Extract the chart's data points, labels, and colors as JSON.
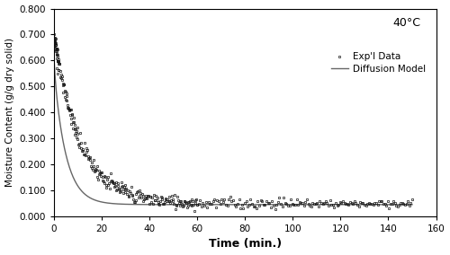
{
  "title": "",
  "xlabel": "Time (min.)",
  "ylabel": "Moisture Content (g/g dry solid)",
  "temp_label": "40°C",
  "xlim": [
    0,
    160
  ],
  "ylim": [
    0.0,
    0.8
  ],
  "xticks": [
    0,
    20,
    40,
    60,
    80,
    100,
    120,
    140,
    160
  ],
  "yticks": [
    0.0,
    0.1,
    0.2,
    0.3,
    0.4,
    0.5,
    0.6,
    0.7,
    0.8
  ],
  "exp_color": "#111111",
  "model_color": "#666666",
  "background": "#ffffff",
  "legend_exp": "Exp'l Data",
  "legend_model": "Diffusion Model",
  "exp_M0": 0.7,
  "exp_Me": 0.05,
  "exp_k": 0.09,
  "model_M0": 0.7,
  "model_Me": 0.045,
  "model_k1": 0.022,
  "model_k2": 0.198
}
